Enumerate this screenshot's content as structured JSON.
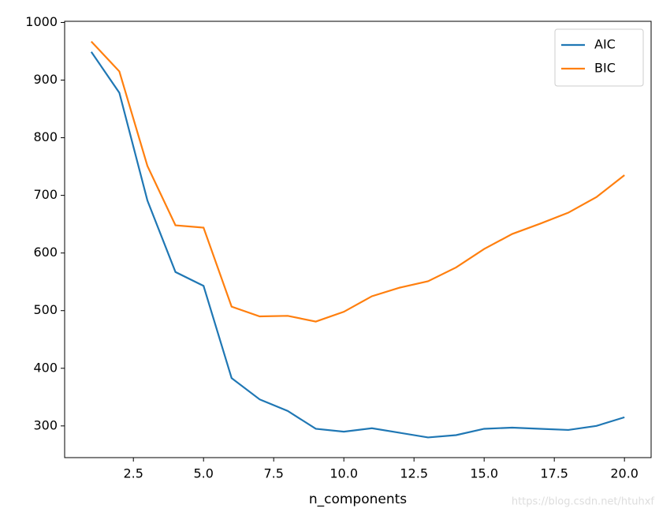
{
  "chart_data": {
    "type": "line",
    "x": [
      1,
      2,
      3,
      4,
      5,
      6,
      7,
      8,
      9,
      10,
      11,
      12,
      13,
      14,
      15,
      16,
      17,
      18,
      19,
      20
    ],
    "series": [
      {
        "name": "AIC",
        "color": "#1f77b4",
        "values": [
          949,
          878,
          691,
          567,
          543,
          383,
          346,
          326,
          295,
          290,
          296,
          288,
          280,
          284,
          295,
          297,
          295,
          293,
          300,
          315
        ]
      },
      {
        "name": "BIC",
        "color": "#ff7f0e",
        "values": [
          967,
          915,
          751,
          648,
          644,
          507,
          490,
          491,
          481,
          498,
          525,
          540,
          551,
          575,
          607,
          633,
          651,
          670,
          697,
          735
        ]
      }
    ],
    "xlabel": "n_components",
    "xlim": [
      0.05,
      20.95
    ],
    "ylim": [
      245,
      1002
    ],
    "xticks": [
      2.5,
      {
        "value": 5,
        "label": "5.0"
      },
      7.5,
      {
        "value": 10,
        "label": "10.0"
      },
      12.5,
      {
        "value": 15,
        "label": "15.0"
      },
      17.5,
      {
        "value": 20,
        "label": "20.0"
      }
    ],
    "yticks": [
      300,
      400,
      500,
      600,
      700,
      800,
      900,
      1000
    ],
    "legend": "upper right",
    "watermark": "https://blog.csdn.net/htuhxf"
  }
}
